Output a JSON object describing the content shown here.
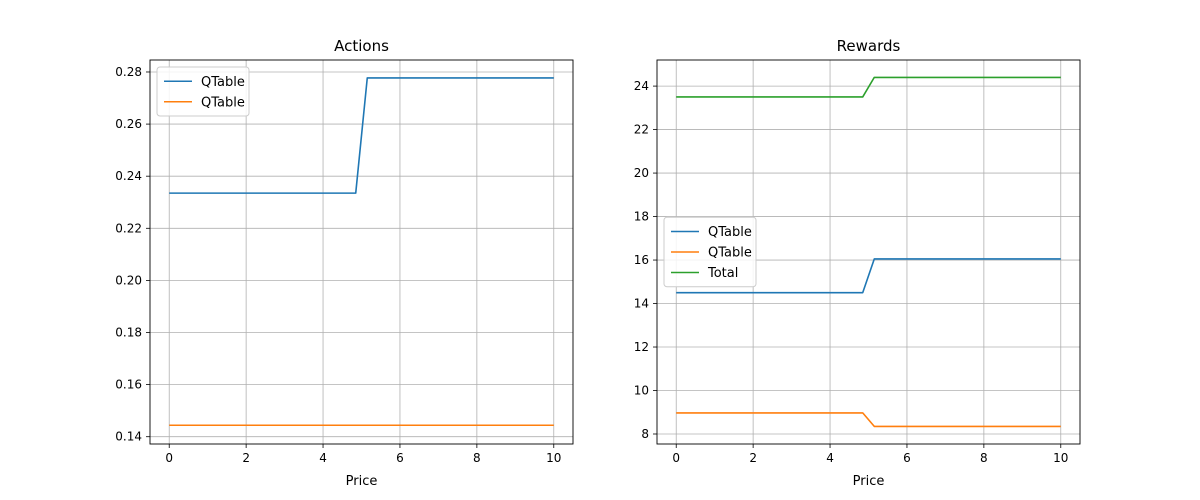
{
  "chart_data": [
    {
      "type": "line",
      "title": "Actions",
      "xlabel": "Price",
      "ylabel": "",
      "xlim": [
        -0.5,
        10.5
      ],
      "ylim": [
        0.1372,
        0.2846
      ],
      "xticks": [
        0,
        2,
        4,
        6,
        8,
        10
      ],
      "yticks": [
        0.14,
        0.16,
        0.18,
        0.2,
        0.22,
        0.24,
        0.26,
        0.28
      ],
      "ytick_labels": [
        "0.14",
        "0.16",
        "0.18",
        "0.20",
        "0.22",
        "0.24",
        "0.26",
        "0.28"
      ],
      "grid": true,
      "legend_position": "upper-left",
      "series": [
        {
          "name": "QTable",
          "color": "#1f77b4",
          "x": [
            0,
            4.85,
            5.15,
            10
          ],
          "y": [
            0.2335,
            0.2335,
            0.2777,
            0.2777
          ]
        },
        {
          "name": "QTable",
          "color": "#ff7f0e",
          "x": [
            0,
            10
          ],
          "y": [
            0.1444,
            0.1444
          ]
        }
      ]
    },
    {
      "type": "line",
      "title": "Rewards",
      "xlabel": "Price",
      "ylabel": "",
      "xlim": [
        -0.5,
        10.5
      ],
      "ylim": [
        7.54,
        25.2
      ],
      "xticks": [
        0,
        2,
        4,
        6,
        8,
        10
      ],
      "yticks": [
        8,
        10,
        12,
        14,
        16,
        18,
        20,
        22,
        24
      ],
      "ytick_labels": [
        "8",
        "10",
        "12",
        "14",
        "16",
        "18",
        "20",
        "22",
        "24"
      ],
      "grid": true,
      "legend_position": "center-left",
      "series": [
        {
          "name": "QTable",
          "color": "#1f77b4",
          "x": [
            0,
            4.85,
            5.15,
            10
          ],
          "y": [
            14.5,
            14.5,
            16.05,
            16.05
          ]
        },
        {
          "name": "QTable",
          "color": "#ff7f0e",
          "x": [
            0,
            4.85,
            5.15,
            10
          ],
          "y": [
            8.97,
            8.97,
            8.35,
            8.35
          ]
        },
        {
          "name": "Total",
          "color": "#2ca02c",
          "x": [
            0,
            4.85,
            5.15,
            10
          ],
          "y": [
            23.5,
            23.5,
            24.4,
            24.4
          ]
        }
      ]
    }
  ]
}
